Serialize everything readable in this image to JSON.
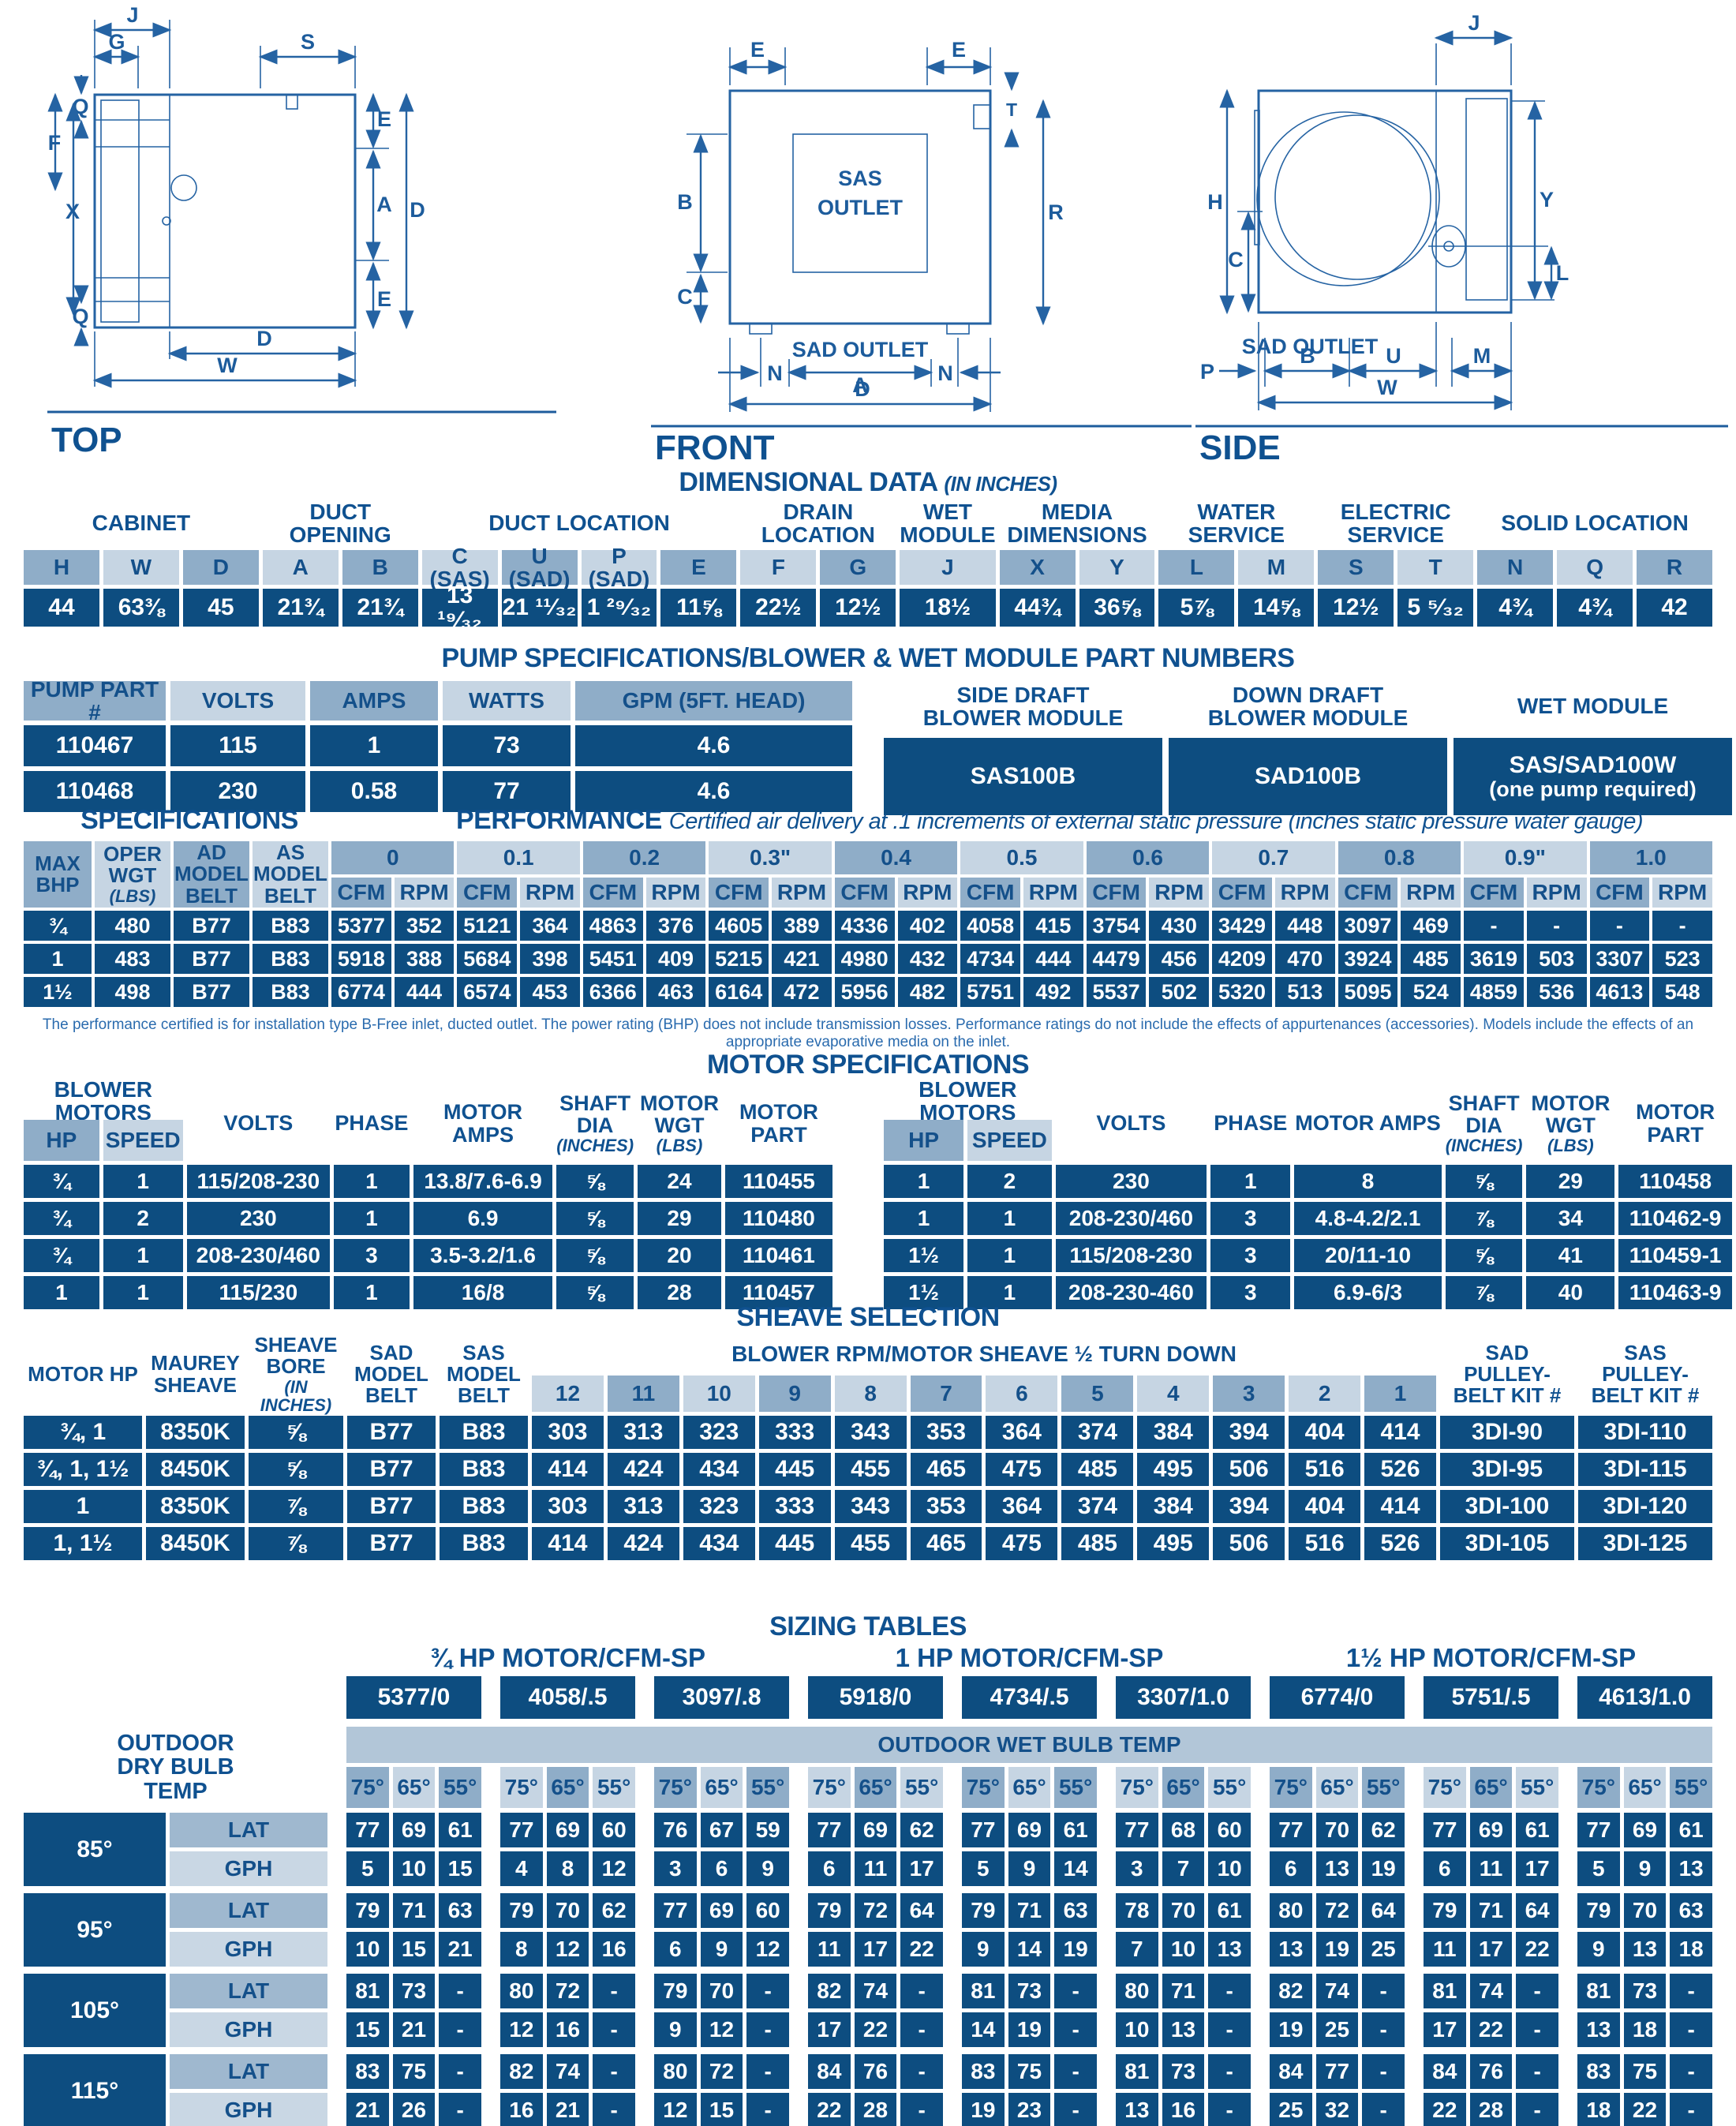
{
  "colors": {
    "navy_cell": "#0d4d80",
    "header_medium": "#8fadc8",
    "header_light": "#c6d5e3",
    "banner": "#b2c6d8",
    "lat_bg": "#9fb8cf",
    "gph_bg": "#c9d7e4",
    "title_navy": "#0f5190",
    "line_blue": "#2563a3",
    "page_bg": "#ffffff"
  },
  "diagrams": {
    "top": {
      "caption": "TOP",
      "labels": {
        "j": "J",
        "g": "G",
        "s": "S",
        "q_top": "Q",
        "f": "F",
        "x": "X",
        "e_top": "E",
        "a": "A",
        "d_right": "D",
        "e_bot": "E",
        "q_bot": "Q",
        "d_bot": "D",
        "w": "W"
      }
    },
    "front": {
      "caption": "FRONT",
      "labels": {
        "e_left": "E",
        "e_right": "E",
        "t": "T",
        "b": "B",
        "r": "R",
        "c": "C",
        "sas1": "SAS",
        "sas2": "OUTLET",
        "sad": "SAD OUTLET",
        "n_left": "N",
        "a": "A",
        "n_right": "N",
        "d": "D"
      }
    },
    "side": {
      "caption": "SIDE",
      "labels": {
        "j": "J",
        "h": "H",
        "c": "C",
        "y": "Y",
        "l": "L",
        "p": "P",
        "sad": "SAD OUTLET",
        "b": "B",
        "u": "U",
        "m": "M",
        "w": "W"
      }
    }
  },
  "dimensional": {
    "title": "DIMENSIONAL DATA",
    "title_suffix": "(IN INCHES)",
    "groups": [
      {
        "label": "CABINET",
        "cols": [
          {
            "h": "H",
            "v": "44"
          },
          {
            "h": "W",
            "v": "63⅜"
          },
          {
            "h": "D",
            "v": "45"
          }
        ]
      },
      {
        "label": "DUCT OPENING",
        "cols": [
          {
            "h": "A",
            "v": "21¾"
          },
          {
            "h": "B",
            "v": "21¾"
          }
        ]
      },
      {
        "label": "DUCT LOCATION",
        "cols": [
          {
            "h": "C (SAS)",
            "v": "13 ¹⁹⁄₃₂"
          },
          {
            "h": "U (SAD)",
            "v": "21 ¹¹⁄₃₂"
          },
          {
            "h": "P (SAD)",
            "v": "1 ²⁹⁄₃₂"
          },
          {
            "h": "E",
            "v": "11⅝"
          }
        ]
      },
      {
        "label": "DRAIN LOCATION",
        "cols": [
          {
            "h": "F",
            "v": "22½"
          },
          {
            "h": "G",
            "v": "12½"
          }
        ]
      },
      {
        "label": "WET MODULE",
        "cols": [
          {
            "h": "J",
            "v": "18½"
          }
        ]
      },
      {
        "label": "MEDIA DIMENSIONS",
        "cols": [
          {
            "h": "X",
            "v": "44¾"
          },
          {
            "h": "Y",
            "v": "36⅝"
          }
        ]
      },
      {
        "label": "WATER SERVICE",
        "cols": [
          {
            "h": "L",
            "v": "5⅞"
          },
          {
            "h": "M",
            "v": "14⅝"
          }
        ]
      },
      {
        "label": "ELECTRIC SERVICE",
        "cols": [
          {
            "h": "S",
            "v": "12½"
          },
          {
            "h": "T",
            "v": "5 ⁵⁄₃₂"
          }
        ]
      },
      {
        "label": "SOLID LOCATION",
        "cols": [
          {
            "h": "N",
            "v": "4¾"
          },
          {
            "h": "Q",
            "v": "4¾"
          },
          {
            "h": "R",
            "v": "42"
          }
        ]
      }
    ]
  },
  "pump": {
    "title": "PUMP SPECIFICATIONS/BLOWER & WET MODULE PART NUMBERS",
    "headers": [
      "PUMP PART #",
      "VOLTS",
      "AMPS",
      "WATTS",
      "GPM (5FT. HEAD)"
    ],
    "rows": [
      [
        "110467",
        "115",
        "1",
        "73",
        "4.6"
      ],
      [
        "110468",
        "230",
        "0.58",
        "77",
        "4.6"
      ]
    ],
    "modules": [
      {
        "h": "SIDE DRAFT BLOWER MODULE",
        "v": "SAS100B",
        "sub": ""
      },
      {
        "h": "DOWN DRAFT BLOWER MODULE",
        "v": "SAD100B",
        "sub": ""
      },
      {
        "h": "WET MODULE",
        "v": "SAS/SAD100W",
        "sub": "(one pump required)"
      }
    ]
  },
  "performance": {
    "left_title": "SPECIFICATIONS",
    "right_title": "PERFORMANCE",
    "right_subtitle": "Certified air delivery at .1 increments of external static pressure (inches static pressure water gauge)",
    "left_headers": [
      {
        "h": "MAX BHP",
        "sub": ""
      },
      {
        "h": "OPER WGT",
        "sub": "(LBS)"
      },
      {
        "h": "AD MODEL BELT",
        "sub": ""
      },
      {
        "h": "AS MODEL BELT",
        "sub": ""
      }
    ],
    "pressures": [
      "0",
      "0.1",
      "0.2",
      "0.3\"",
      "0.4",
      "0.5",
      "0.6",
      "0.7",
      "0.8",
      "0.9\"",
      "1.0"
    ],
    "sub_headers": [
      "CFM",
      "RPM"
    ],
    "rows": [
      {
        "bhp": "¾",
        "wgt": "480",
        "ad": "B77",
        "as": "B83",
        "vals": [
          "5377",
          "352",
          "5121",
          "364",
          "4863",
          "376",
          "4605",
          "389",
          "4336",
          "402",
          "4058",
          "415",
          "3754",
          "430",
          "3429",
          "448",
          "3097",
          "469",
          "-",
          "-",
          "-",
          "-"
        ]
      },
      {
        "bhp": "1",
        "wgt": "483",
        "ad": "B77",
        "as": "B83",
        "vals": [
          "5918",
          "388",
          "5684",
          "398",
          "5451",
          "409",
          "5215",
          "421",
          "4980",
          "432",
          "4734",
          "444",
          "4479",
          "456",
          "4209",
          "470",
          "3924",
          "485",
          "3619",
          "503",
          "3307",
          "523"
        ]
      },
      {
        "bhp": "1½",
        "wgt": "498",
        "ad": "B77",
        "as": "B83",
        "vals": [
          "6774",
          "444",
          "6574",
          "453",
          "6366",
          "463",
          "6164",
          "472",
          "5956",
          "482",
          "5751",
          "492",
          "5537",
          "502",
          "5320",
          "513",
          "5095",
          "524",
          "4859",
          "536",
          "4613",
          "548"
        ]
      }
    ],
    "footnote": "The performance certified is for installation type B-Free inlet, ducted outlet. The power rating (BHP) does not include transmission losses. Performance ratings do not include the effects of appurtenances (accessories). Models include the effects of an appropriate evaporative media on the inlet."
  },
  "motors": {
    "title": "MOTOR SPECIFICATIONS",
    "group_label": "BLOWER MOTORS",
    "col_headers": [
      {
        "h": "HP"
      },
      {
        "h": "SPEED"
      },
      {
        "h": "VOLTS"
      },
      {
        "h": "PHASE"
      },
      {
        "h": "MOTOR AMPS"
      },
      {
        "h": "SHAFT DIA",
        "sub": "(INCHES)"
      },
      {
        "h": "MOTOR WGT",
        "sub": "(LBS)"
      },
      {
        "h": "MOTOR PART"
      }
    ],
    "left_rows": [
      [
        "¾",
        "1",
        "115/208-230",
        "1",
        "13.8/7.6-6.9",
        "⅝",
        "24",
        "110455"
      ],
      [
        "¾",
        "2",
        "230",
        "1",
        "6.9",
        "⅝",
        "29",
        "110480"
      ],
      [
        "¾",
        "1",
        "208-230/460",
        "3",
        "3.5-3.2/1.6",
        "⅝",
        "20",
        "110461"
      ],
      [
        "1",
        "1",
        "115/230",
        "1",
        "16/8",
        "⅝",
        "28",
        "110457"
      ]
    ],
    "right_rows": [
      [
        "1",
        "2",
        "230",
        "1",
        "8",
        "⅝",
        "29",
        "110458"
      ],
      [
        "1",
        "1",
        "208-230/460",
        "3",
        "4.8-4.2/2.1",
        "⅞",
        "34",
        "110462-9"
      ],
      [
        "1½",
        "1",
        "115/208-230",
        "3",
        "20/11-10",
        "⅝",
        "41",
        "110459-1"
      ],
      [
        "1½",
        "1",
        "208-230-460",
        "3",
        "6.9-6/3",
        "⅞",
        "40",
        "110463-9"
      ]
    ]
  },
  "sheave": {
    "title": "SHEAVE SELECTION",
    "col_headers": [
      {
        "h": "MOTOR HP"
      },
      {
        "h": "MAUREY SHEAVE"
      },
      {
        "h": "SHEAVE BORE",
        "sub": "(IN INCHES)"
      },
      {
        "h": "SAD MODEL BELT"
      },
      {
        "h": "SAS MODEL BELT"
      }
    ],
    "group_label": "BLOWER RPM/MOTOR SHEAVE ½ TURN DOWN",
    "turn_cols": [
      "12",
      "11",
      "10",
      "9",
      "8",
      "7",
      "6",
      "5",
      "4",
      "3",
      "2",
      "1"
    ],
    "kit_headers": [
      "SAD PULLEY-BELT KIT #",
      "SAS PULLEY-BELT KIT #"
    ],
    "rows": [
      {
        "hp": "¾, 1",
        "sheave": "8350K",
        "bore": "⅝",
        "sad": "B77",
        "sas": "B83",
        "vals": [
          "303",
          "313",
          "323",
          "333",
          "343",
          "353",
          "364",
          "374",
          "384",
          "394",
          "404",
          "414"
        ],
        "sad_kit": "3DI-90",
        "sas_kit": "3DI-110"
      },
      {
        "hp": "¾, 1, 1½",
        "sheave": "8450K",
        "bore": "⅝",
        "sad": "B77",
        "sas": "B83",
        "vals": [
          "414",
          "424",
          "434",
          "445",
          "455",
          "465",
          "475",
          "485",
          "495",
          "506",
          "516",
          "526"
        ],
        "sad_kit": "3DI-95",
        "sas_kit": "3DI-115"
      },
      {
        "hp": "1",
        "sheave": "8350K",
        "bore": "⅞",
        "sad": "B77",
        "sas": "B83",
        "vals": [
          "303",
          "313",
          "323",
          "333",
          "343",
          "353",
          "364",
          "374",
          "384",
          "394",
          "404",
          "414"
        ],
        "sad_kit": "3DI-100",
        "sas_kit": "3DI-120"
      },
      {
        "hp": "1, 1½",
        "sheave": "8450K",
        "bore": "⅞",
        "sad": "B77",
        "sas": "B83",
        "vals": [
          "414",
          "424",
          "434",
          "445",
          "455",
          "465",
          "475",
          "485",
          "495",
          "506",
          "516",
          "526"
        ],
        "sad_kit": "3DI-105",
        "sas_kit": "3DI-125"
      }
    ]
  },
  "sizing": {
    "title": "SIZING TABLES",
    "hp_titles": [
      "¾ HP MOTOR/CFM-SP",
      "1 HP MOTOR/CFM-SP",
      "1½ HP MOTOR/CFM-SP"
    ],
    "models": [
      "5377/0",
      "4058/.5",
      "3097/.8",
      "5918/0",
      "4734/.5",
      "3307/1.0",
      "6774/0",
      "5751/.5",
      "4613/1.0"
    ],
    "banner": "OUTDOOR WET BULB TEMP",
    "dry_bulb_label": [
      "OUTDOOR",
      "DRY BULB",
      "TEMP"
    ],
    "wet_bulb_cols": [
      "75°",
      "65°",
      "55°"
    ],
    "row_labels": [
      "LAT",
      "GPH"
    ],
    "temps": [
      {
        "t": "85°",
        "lat": [
          "77",
          "69",
          "61",
          "77",
          "69",
          "60",
          "76",
          "67",
          "59",
          "77",
          "69",
          "62",
          "77",
          "69",
          "61",
          "77",
          "68",
          "60",
          "77",
          "70",
          "62",
          "77",
          "69",
          "61",
          "77",
          "69",
          "61"
        ],
        "gph": [
          "5",
          "10",
          "15",
          "4",
          "8",
          "12",
          "3",
          "6",
          "9",
          "6",
          "11",
          "17",
          "5",
          "9",
          "14",
          "3",
          "7",
          "10",
          "6",
          "13",
          "19",
          "6",
          "11",
          "17",
          "5",
          "9",
          "13"
        ]
      },
      {
        "t": "95°",
        "lat": [
          "79",
          "71",
          "63",
          "79",
          "70",
          "62",
          "77",
          "69",
          "60",
          "79",
          "72",
          "64",
          "79",
          "71",
          "63",
          "78",
          "70",
          "61",
          "80",
          "72",
          "64",
          "79",
          "71",
          "64",
          "79",
          "70",
          "63"
        ],
        "gph": [
          "10",
          "15",
          "21",
          "8",
          "12",
          "16",
          "6",
          "9",
          "12",
          "11",
          "17",
          "22",
          "9",
          "14",
          "19",
          "7",
          "10",
          "13",
          "13",
          "19",
          "25",
          "11",
          "17",
          "22",
          "9",
          "13",
          "18"
        ]
      },
      {
        "t": "105°",
        "lat": [
          "81",
          "73",
          "-",
          "80",
          "72",
          "-",
          "79",
          "70",
          "-",
          "82",
          "74",
          "-",
          "81",
          "73",
          "-",
          "80",
          "71",
          "-",
          "82",
          "74",
          "-",
          "81",
          "74",
          "-",
          "81",
          "73",
          "-"
        ],
        "gph": [
          "15",
          "21",
          "-",
          "12",
          "16",
          "-",
          "9",
          "12",
          "-",
          "17",
          "22",
          "-",
          "14",
          "19",
          "-",
          "10",
          "13",
          "-",
          "19",
          "25",
          "-",
          "17",
          "22",
          "-",
          "13",
          "18",
          "-"
        ]
      },
      {
        "t": "115°",
        "lat": [
          "83",
          "75",
          "-",
          "82",
          "74",
          "-",
          "80",
          "72",
          "-",
          "84",
          "76",
          "-",
          "83",
          "75",
          "-",
          "81",
          "73",
          "-",
          "84",
          "77",
          "-",
          "84",
          "76",
          "-",
          "83",
          "75",
          "-"
        ],
        "gph": [
          "21",
          "26",
          "-",
          "16",
          "21",
          "-",
          "12",
          "15",
          "-",
          "22",
          "28",
          "-",
          "19",
          "23",
          "-",
          "13",
          "16",
          "-",
          "25",
          "32",
          "-",
          "22",
          "28",
          "-",
          "18",
          "22",
          "-"
        ]
      }
    ]
  }
}
